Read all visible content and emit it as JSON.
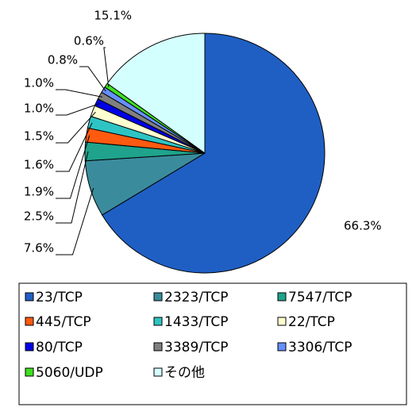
{
  "chart_data": {
    "type": "pie",
    "categories": [
      "23/TCP",
      "2323/TCP",
      "7547/TCP",
      "445/TCP",
      "1433/TCP",
      "22/TCP",
      "80/TCP",
      "3389/TCP",
      "3306/TCP",
      "5060/UDP",
      "その他"
    ],
    "values": [
      66.3,
      7.6,
      2.5,
      1.9,
      1.6,
      1.5,
      1.0,
      1.0,
      0.8,
      0.6,
      15.1
    ],
    "value_labels": [
      "66.3%",
      "7.6%",
      "2.5%",
      "1.9%",
      "1.6%",
      "1.5%",
      "1.0%",
      "1.0%",
      "0.8%",
      "0.6%",
      "15.1%"
    ],
    "colors": [
      "#1f5fc4",
      "#3a8c9c",
      "#1fa38c",
      "#ff5a10",
      "#2ec4c4",
      "#ffffd0",
      "#0000e6",
      "#808080",
      "#6690ff",
      "#3fe01f",
      "#d4ffff"
    ],
    "legend": "bottom"
  }
}
